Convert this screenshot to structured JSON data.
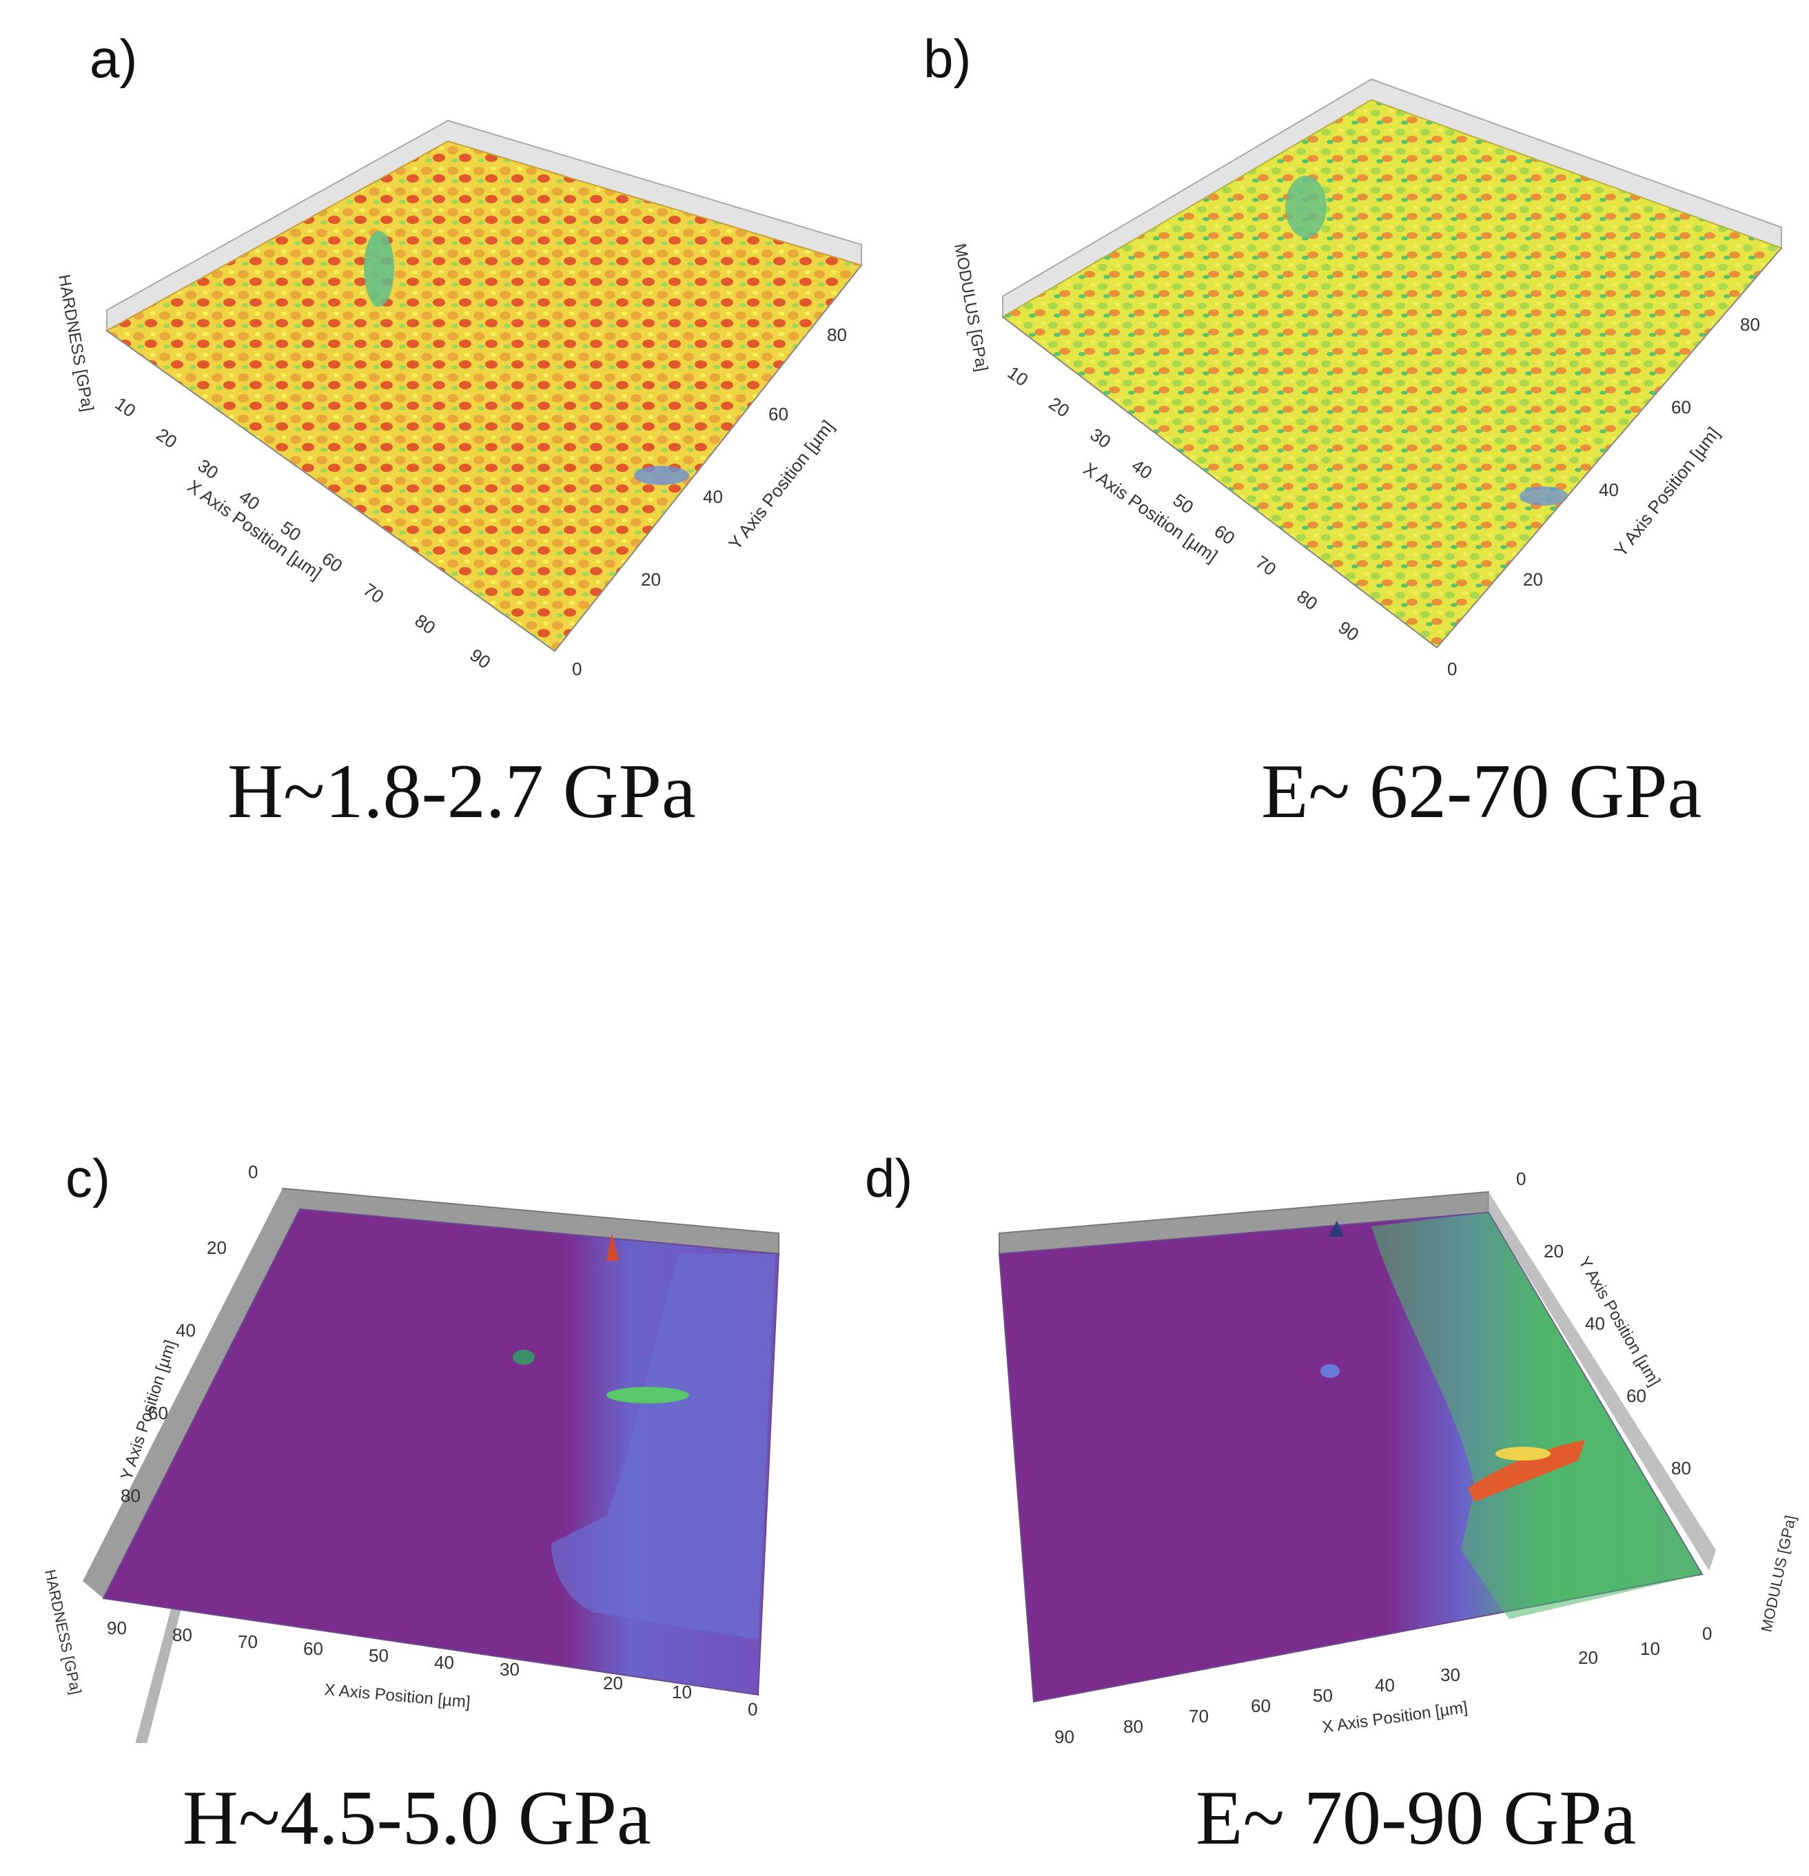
{
  "panels": [
    {
      "letter": "a)",
      "caption": "H~1.8-2.7 GPa",
      "z_axis_label": "HARDNESS [GPa]",
      "x_axis_label": "X Axis Position [µm]",
      "y_axis_label": "Y Axis Position [µm]",
      "x_ticks": [
        "10",
        "20",
        "30",
        "40",
        "50",
        "60",
        "70",
        "80",
        "90"
      ],
      "y_ticks": [
        "0",
        "20",
        "40",
        "60",
        "80"
      ],
      "colors": [
        "#f2e94a",
        "#e9b23a",
        "#e3542b",
        "#9ed858"
      ]
    },
    {
      "letter": "b)",
      "caption": "E~ 62-70 GPa",
      "z_axis_label": "MODULUS [GPa]",
      "x_axis_label": "X Axis Position [µm]",
      "y_axis_label": "Y Axis Position [µm]",
      "x_ticks": [
        "10",
        "20",
        "30",
        "40",
        "50",
        "60",
        "70",
        "80",
        "90"
      ],
      "y_ticks": [
        "0",
        "20",
        "40",
        "60",
        "80"
      ],
      "colors": [
        "#e8ea44",
        "#bfe04a",
        "#e8903a",
        "#59c46a"
      ]
    },
    {
      "letter": "c)",
      "caption": "H~4.5-5.0 GPa",
      "z_axis_label": "HARDNESS [GPa]",
      "x_axis_label": "X Axis Position [µm]",
      "y_axis_label": "Y Axis Position [µm]",
      "x_ticks": [
        "90",
        "80",
        "70",
        "60",
        "50",
        "40",
        "30",
        "20",
        "10",
        "0"
      ],
      "y_ticks": [
        "0",
        "20",
        "40",
        "60",
        "80"
      ],
      "colors": [
        "#7b2d8e",
        "#6a63c9",
        "#58c86a"
      ]
    },
    {
      "letter": "d)",
      "caption": "E~ 70-90 GPa",
      "z_axis_label": "MODULUS [GPa]",
      "x_axis_label": "X Axis Position [µm]",
      "y_axis_label": "Y Axis Position [µm]",
      "x_ticks": [
        "90",
        "80",
        "70",
        "60",
        "50",
        "40",
        "30",
        "20",
        "10",
        "0"
      ],
      "y_ticks": [
        "0",
        "20",
        "40",
        "60",
        "80"
      ],
      "colors": [
        "#7b2d8e",
        "#6a63c9",
        "#4fb86a",
        "#e25b2c"
      ]
    }
  ]
}
